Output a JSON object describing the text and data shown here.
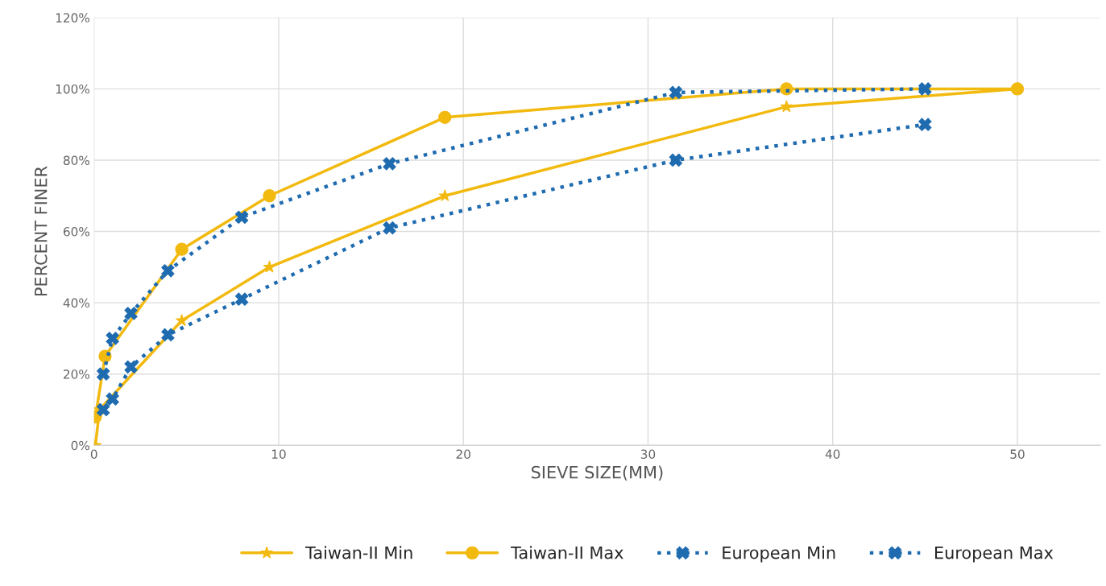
{
  "chart_data": {
    "type": "line",
    "xlabel": "SIEVE SIZE(MM)",
    "ylabel": "PERCENT FINER",
    "xlim": [
      0,
      54.5
    ],
    "xticks": [
      0,
      10,
      20,
      30,
      40,
      50
    ],
    "ylim": [
      0,
      120
    ],
    "yticks": [
      {
        "value": 0,
        "label": "0%"
      },
      {
        "value": 20,
        "label": "20%"
      },
      {
        "value": 40,
        "label": "40%"
      },
      {
        "value": 60,
        "label": "60%"
      },
      {
        "value": 80,
        "label": "80%"
      },
      {
        "value": 100,
        "label": "100%"
      },
      {
        "value": 120,
        "label": "120%"
      }
    ],
    "grid": true,
    "legend": "bottom",
    "series": [
      {
        "name": "Taiwan-II Min",
        "color": "#f2b90f",
        "marker": "star",
        "line_style": "solid",
        "x": [
          0.075,
          0.3,
          4.75,
          9.5,
          19,
          37.5,
          50
        ],
        "values": [
          0,
          10,
          35,
          50,
          70,
          95,
          100
        ]
      },
      {
        "name": "Taiwan-II Max",
        "color": "#f2b90f",
        "marker": "circle",
        "line_style": "solid",
        "x": [
          0.075,
          0.6,
          4.75,
          9.5,
          19,
          37.5,
          50
        ],
        "values": [
          8,
          25,
          55,
          70,
          92,
          100,
          100
        ]
      },
      {
        "name": "European Min",
        "color": "#1f6bb0",
        "marker": "cross",
        "line_style": "dotted",
        "x": [
          0.5,
          1,
          2,
          4,
          8,
          16,
          31.5,
          45
        ],
        "values": [
          10,
          13,
          22,
          31,
          41,
          61,
          80,
          90
        ]
      },
      {
        "name": "European Max",
        "color": "#1f6bb0",
        "marker": "cross",
        "line_style": "dotted",
        "x": [
          0.5,
          1,
          2,
          4,
          8,
          16,
          31.5,
          45
        ],
        "values": [
          20,
          30,
          37,
          49,
          64,
          79,
          99,
          100
        ]
      }
    ]
  }
}
